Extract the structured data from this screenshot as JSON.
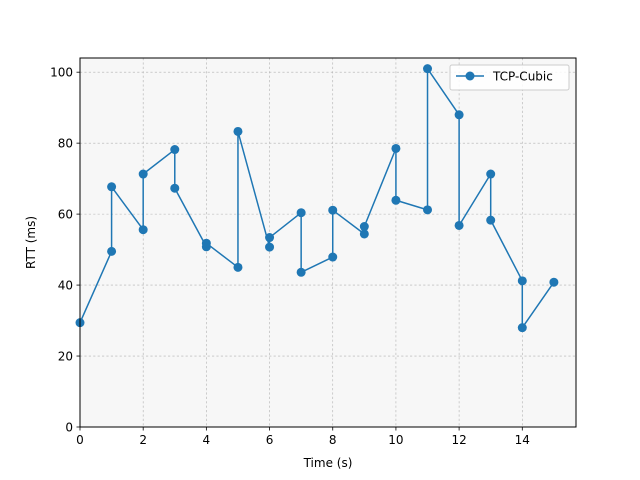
{
  "chart_data": {
    "type": "line",
    "title": "",
    "xlabel": "Time (s)",
    "ylabel": "RTT (ms)",
    "xlim": [
      0,
      15.7
    ],
    "ylim": [
      0,
      104
    ],
    "x_ticks": [
      0,
      2,
      4,
      6,
      8,
      10,
      12,
      14
    ],
    "y_ticks": [
      0,
      20,
      40,
      60,
      80,
      100
    ],
    "x_tick_labels": [
      "0",
      "2",
      "4",
      "6",
      "8",
      "10",
      "12",
      "14"
    ],
    "y_tick_labels": [
      "0",
      "20",
      "40",
      "60",
      "80",
      "100"
    ],
    "grid": true,
    "legend_position": "top-right",
    "series": [
      {
        "name": "TCP-Cubic",
        "color": "#1f77b4",
        "x": [
          0,
          1,
          1,
          2,
          2,
          3,
          3,
          4,
          4,
          5,
          5,
          6,
          6,
          7,
          7,
          8,
          8,
          9,
          9,
          10,
          10,
          11,
          11,
          12,
          12,
          13,
          13,
          14,
          14,
          15
        ],
        "y": [
          29.4,
          49.5,
          67.7,
          55.6,
          71.3,
          78.2,
          67.3,
          50.8,
          51.8,
          45.0,
          83.3,
          50.7,
          53.4,
          60.4,
          43.6,
          47.9,
          61.1,
          54.4,
          56.5,
          78.5,
          63.9,
          61.2,
          101.0,
          88.0,
          56.8,
          71.3,
          58.3,
          41.2,
          28.0,
          40.8
        ]
      }
    ]
  }
}
